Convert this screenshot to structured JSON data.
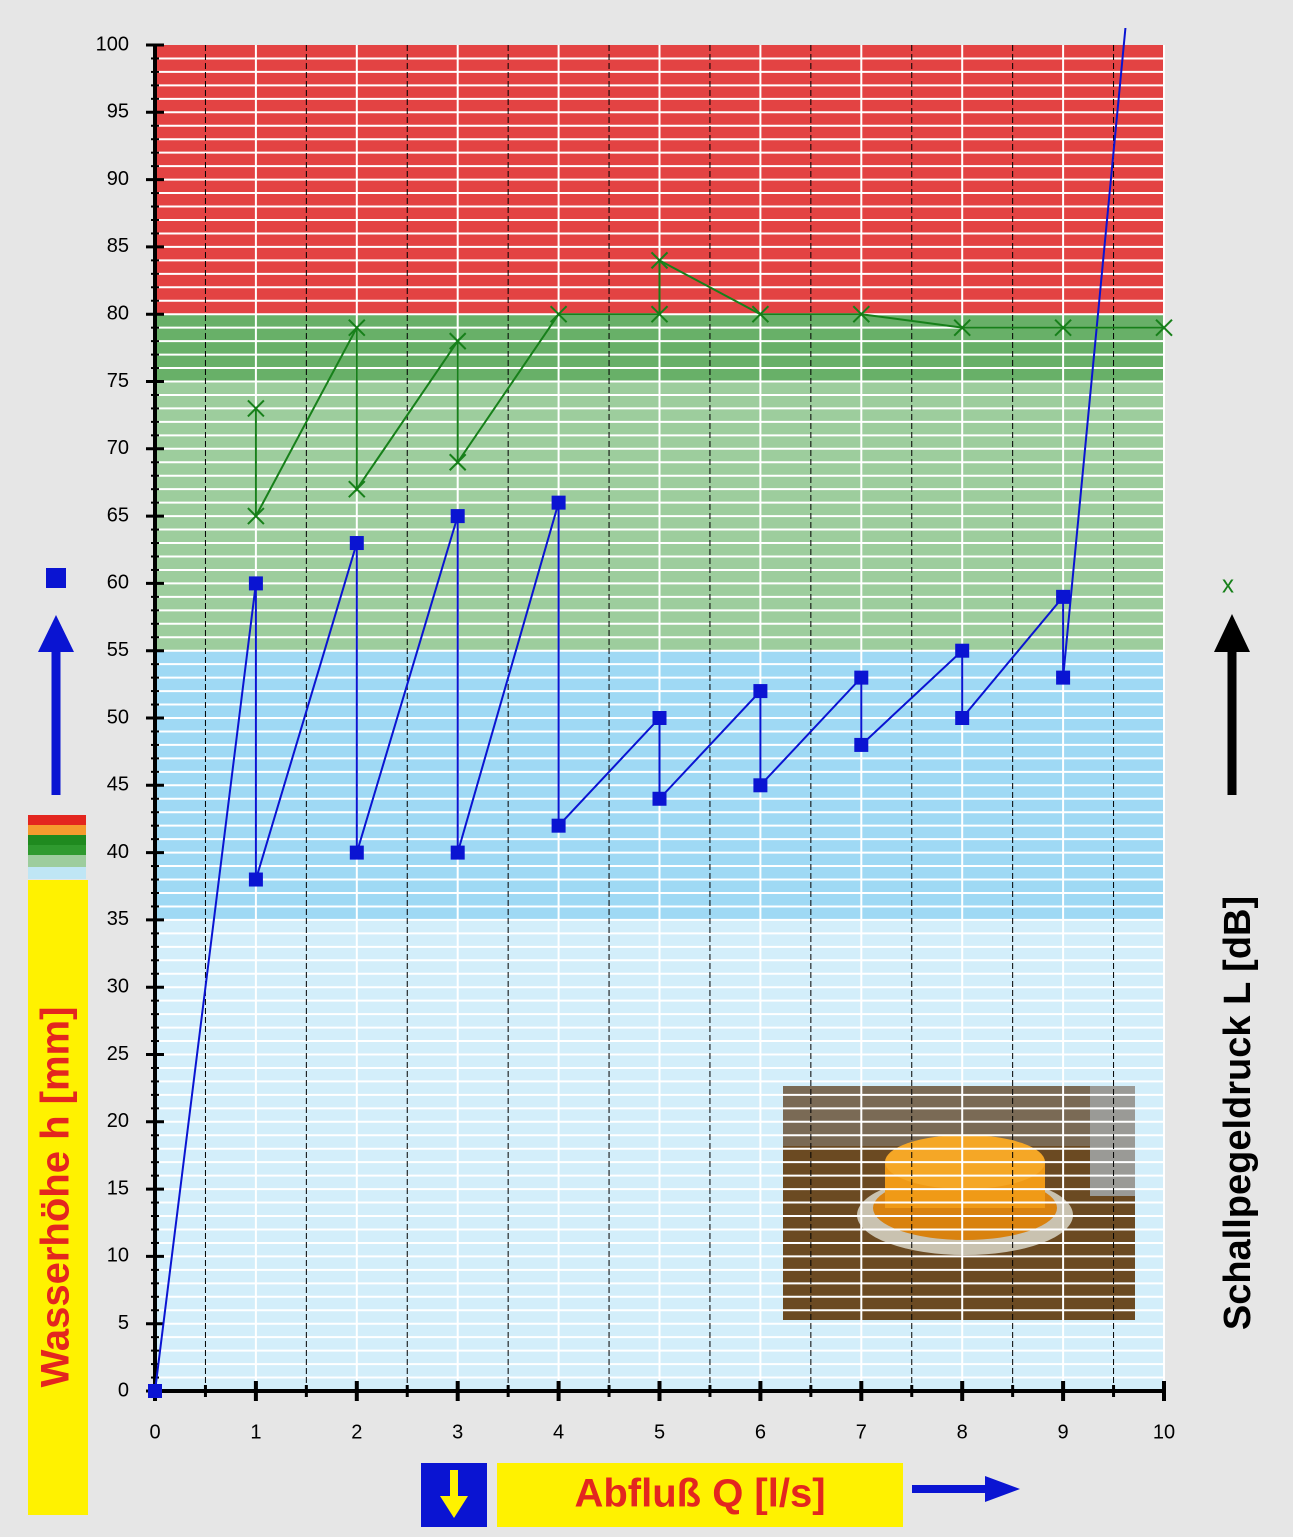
{
  "chart_data": {
    "type": "line",
    "x_label": "Abfluß Q [l/s]",
    "y_label": "Wasserhöhe h [mm]",
    "y2_label": "Schallpegeldruck L [dB]",
    "y2_marker_label": "x",
    "xlim": [
      0,
      10
    ],
    "ylim": [
      0,
      100
    ],
    "xticks": [
      0,
      1,
      2,
      3,
      4,
      5,
      6,
      7,
      8,
      9,
      10
    ],
    "yticks": [
      0,
      5,
      10,
      15,
      20,
      25,
      30,
      35,
      40,
      45,
      50,
      55,
      60,
      65,
      70,
      75,
      80,
      85,
      90,
      95,
      100
    ],
    "x_minor_step": 0.5,
    "y_minor_step": 1,
    "bands": [
      {
        "from": 0,
        "to": 35,
        "color": "#d3eefa"
      },
      {
        "from": 35,
        "to": 55,
        "color": "#9fd9f4"
      },
      {
        "from": 55,
        "to": 75,
        "color": "#9dcd9d"
      },
      {
        "from": 75,
        "to": 80,
        "color": "#68b068"
      },
      {
        "from": 80,
        "to": 100,
        "color": "#e34343"
      }
    ],
    "series": [
      {
        "color": "#0a14d2",
        "marker": "square",
        "x": [
          0,
          1,
          1,
          2,
          2,
          3,
          3,
          4,
          4,
          5,
          5,
          6,
          6,
          7,
          7,
          8,
          8,
          9,
          9,
          9.64
        ],
        "values": [
          0,
          60,
          38,
          63,
          40,
          65,
          40,
          66,
          42,
          50,
          44,
          52,
          45,
          53,
          48,
          55,
          50,
          59,
          53,
          103
        ]
      },
      {
        "color": "#17801a",
        "marker": "cross",
        "x": [
          1,
          1,
          2,
          2,
          3,
          3,
          4,
          5,
          5,
          6,
          7,
          8,
          9,
          10
        ],
        "values": [
          73,
          65,
          79,
          67,
          78,
          69,
          80,
          80,
          84,
          80,
          80,
          79,
          79,
          79
        ]
      }
    ]
  }
}
